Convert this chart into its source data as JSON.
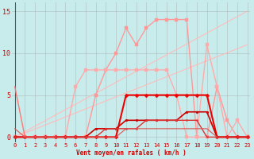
{
  "bg_color": "#c8ecec",
  "grid_color": "#aaaaaa",
  "xlabel": "Vent moyen/en rafales ( km/h )",
  "xlim": [
    -0.3,
    23.3
  ],
  "ylim": [
    -0.6,
    16
  ],
  "yticks": [
    0,
    5,
    10,
    15
  ],
  "xticks": [
    0,
    1,
    2,
    3,
    4,
    5,
    6,
    7,
    8,
    9,
    10,
    11,
    12,
    13,
    14,
    15,
    16,
    17,
    18,
    19,
    20,
    21,
    22,
    23
  ],
  "series": [
    {
      "x": [
        0,
        23
      ],
      "y": [
        0,
        11
      ],
      "color": "#ffbbbb",
      "lw": 0.8,
      "marker": null,
      "ms": 0
    },
    {
      "x": [
        0,
        23
      ],
      "y": [
        0,
        15
      ],
      "color": "#ffbbbb",
      "lw": 0.8,
      "marker": null,
      "ms": 0
    },
    {
      "x": [
        0,
        1,
        2,
        3,
        4,
        5,
        6,
        7,
        8,
        9,
        10,
        11,
        12,
        13,
        14,
        15,
        16,
        17,
        18,
        19,
        20,
        21,
        22,
        23
      ],
      "y": [
        0,
        0,
        0,
        0,
        0,
        0,
        0,
        0,
        5,
        8,
        10,
        13,
        11,
        13,
        14,
        14,
        14,
        14,
        0,
        0,
        6,
        2,
        0,
        0
      ],
      "color": "#ff9999",
      "lw": 1.0,
      "marker": "s",
      "ms": 2.5
    },
    {
      "x": [
        0,
        1,
        2,
        3,
        4,
        5,
        6,
        7,
        8,
        9,
        10,
        11,
        12,
        13,
        14,
        15,
        16,
        17,
        18,
        19,
        20,
        21,
        22,
        23
      ],
      "y": [
        0,
        0,
        0,
        0,
        0,
        0,
        6,
        8,
        8,
        8,
        8,
        8,
        8,
        8,
        8,
        8,
        5,
        0,
        0,
        11,
        6,
        0,
        2,
        0
      ],
      "color": "#ffaaaa",
      "lw": 1.0,
      "marker": "s",
      "ms": 2.5
    },
    {
      "x": [
        0,
        1,
        2,
        3,
        4,
        5,
        6,
        7,
        8,
        9,
        10,
        11,
        12,
        13,
        14,
        15,
        16,
        17,
        18,
        19,
        20,
        21,
        22,
        23
      ],
      "y": [
        0,
        0,
        0,
        0,
        0,
        0,
        0,
        0,
        0,
        0,
        0,
        5,
        5,
        5,
        5,
        5,
        5,
        5,
        5,
        5,
        0,
        0,
        0,
        0
      ],
      "color": "#ee0000",
      "lw": 1.5,
      "marker": "D",
      "ms": 2.5
    },
    {
      "x": [
        0,
        1,
        2,
        3,
        4,
        5,
        6,
        7,
        8,
        9,
        10,
        11,
        12,
        13,
        14,
        15,
        16,
        17,
        18,
        19,
        20,
        21,
        22,
        23
      ],
      "y": [
        0,
        0,
        0,
        0,
        0,
        0,
        0,
        0,
        1,
        1,
        1,
        2,
        2,
        2,
        2,
        2,
        2,
        3,
        3,
        3,
        0,
        0,
        0,
        0
      ],
      "color": "#cc0000",
      "lw": 1.2,
      "marker": "o",
      "ms": 2.0
    },
    {
      "x": [
        0,
        1,
        2,
        3,
        4,
        5,
        6,
        7,
        8,
        9,
        10,
        11,
        12,
        13,
        14,
        15,
        16,
        17,
        18,
        19,
        20,
        21,
        22,
        23
      ],
      "y": [
        0,
        0,
        0,
        0,
        0,
        0,
        0,
        0,
        0,
        1,
        1,
        1,
        1,
        2,
        2,
        2,
        2,
        2,
        2,
        0,
        0,
        0,
        0,
        0
      ],
      "color": "#dd3333",
      "lw": 1.0,
      "marker": "o",
      "ms": 1.5
    },
    {
      "x": [
        0,
        1,
        2,
        3,
        4
      ],
      "y": [
        6,
        0,
        0,
        0,
        0
      ],
      "color": "#ff7777",
      "lw": 1.0,
      "marker": null,
      "ms": 0
    },
    {
      "x": [
        0,
        1,
        2,
        3,
        4,
        5,
        6,
        7,
        8,
        9,
        10,
        11,
        12,
        13,
        14,
        15,
        16,
        17,
        18,
        19,
        20
      ],
      "y": [
        1,
        0,
        0,
        0,
        0,
        0,
        0,
        0,
        0,
        0,
        0,
        1,
        1,
        1,
        1,
        1,
        1,
        1,
        1,
        1,
        0
      ],
      "color": "#dd5555",
      "lw": 0.8,
      "marker": null,
      "ms": 0
    }
  ]
}
